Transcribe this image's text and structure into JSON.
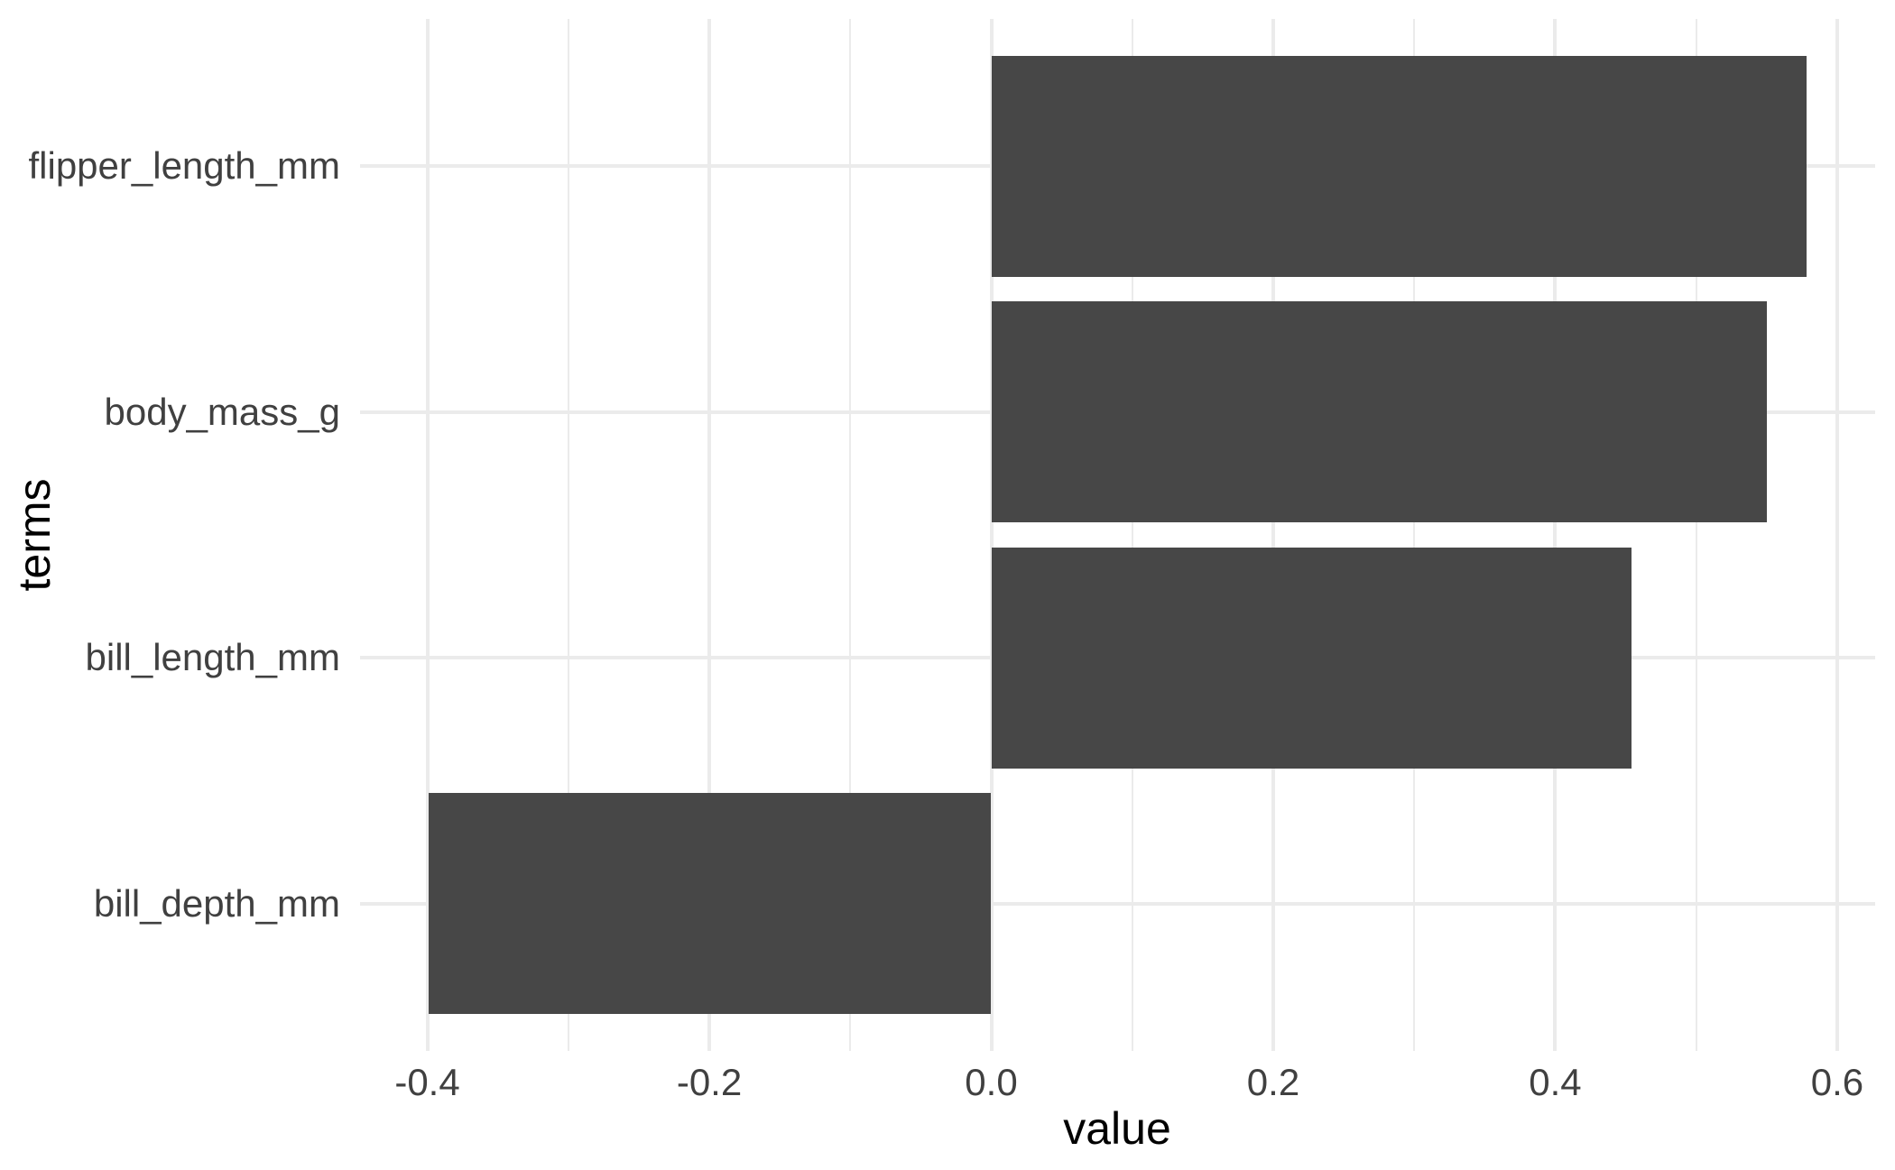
{
  "chart_data": {
    "type": "bar",
    "orientation": "horizontal",
    "title": "",
    "xlabel": "value",
    "ylabel": "terms",
    "categories": [
      "flipper_length_mm",
      "body_mass_g",
      "bill_length_mm",
      "bill_depth_mm"
    ],
    "values": [
      0.578,
      0.55,
      0.454,
      -0.399
    ],
    "xlim": [
      -0.4477,
      0.6269
    ],
    "x_ticks_major": [
      -0.4,
      -0.2,
      0.0,
      0.2,
      0.4,
      0.6
    ],
    "x_tick_labels": [
      "-0.4",
      "-0.2",
      "0.0",
      "0.2",
      "0.4",
      "0.6"
    ],
    "x_ticks_minor": [
      -0.3,
      -0.1,
      0.1,
      0.3,
      0.5
    ],
    "grid": true,
    "legend": false,
    "bar_fill_color": "#474747",
    "grid_major_color": "#EBEBEB",
    "grid_minor_color": "#EBEBEB",
    "axis_text_color": "#404040",
    "axis_title_color": "#000000",
    "background_color": "#FFFFFF"
  }
}
